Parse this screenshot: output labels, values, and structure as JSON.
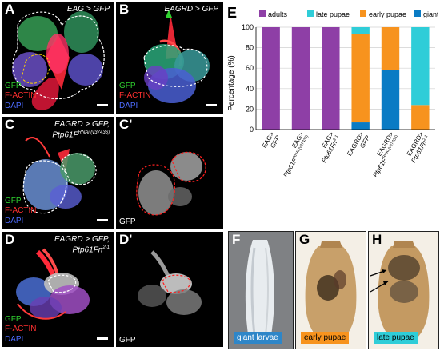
{
  "panels": {
    "A": {
      "label": "A",
      "genotype_line1": "EAG > GFP",
      "genotype_line2": ""
    },
    "B": {
      "label": "B",
      "genotype_line1": "EAGRD > GFP",
      "genotype_line2": ""
    },
    "C": {
      "label": "C",
      "genotype_line1": "EAGRD > GFP,",
      "genotype_line2": "Ptp61F",
      "genotype_sup": "RNAi (v37436)"
    },
    "C_prime": {
      "label": "C'",
      "channel": "GFP"
    },
    "D": {
      "label": "D",
      "genotype_line1": "EAGRD > GFP,",
      "genotype_line2": "Ptp61Fn",
      "genotype_sup": "2-1"
    },
    "D_prime": {
      "label": "D'",
      "channel": "GFP"
    },
    "E": {
      "label": "E"
    },
    "F": {
      "label": "F",
      "tag": "giant larvae"
    },
    "G": {
      "label": "G",
      "tag": "early pupae"
    },
    "H": {
      "label": "H",
      "tag": "late pupae"
    }
  },
  "stain_legend": {
    "gfp": "GFP",
    "factin": "F-ACTIN",
    "dapi": "DAPI"
  },
  "colors": {
    "adults": "#8e3fa6",
    "late_pupae": "#2fcdd8",
    "early_pupae": "#f7931e",
    "giant_larvae": "#0a7bc4",
    "gfp_text": "#2fd12f",
    "factin_text": "#ff3030",
    "dapi_text": "#4d6bff"
  },
  "chart_data": {
    "type": "bar",
    "stacked": true,
    "ylabel": "Percentage (%)",
    "ylim": [
      0,
      100
    ],
    "yticks": [
      0,
      20,
      40,
      60,
      80,
      100
    ],
    "grid": true,
    "legend": {
      "position": "top",
      "entries": [
        "adults",
        "late pupae",
        "early pupae",
        "giant larvae"
      ]
    },
    "categories": [
      {
        "main": "EAG>",
        "sub": "GFP",
        "sup": ""
      },
      {
        "main": "EAG>",
        "sub": "Ptp61F",
        "sup": "RNAi (v37436)"
      },
      {
        "main": "EAG>",
        "sub": "Ptp61Fn",
        "sup": "2-1"
      },
      {
        "main": "EAGRD>",
        "sub": "GFP",
        "sup": ""
      },
      {
        "main": "EAGRD>",
        "sub": "Ptp61F",
        "sup": "RNAi (v37436)"
      },
      {
        "main": "EAGRD>",
        "sub": "Ptp61Fn",
        "sup": "2-1"
      }
    ],
    "series": [
      {
        "name": "giant larvae",
        "values": [
          0,
          0,
          0,
          7,
          58,
          0
        ]
      },
      {
        "name": "early pupae",
        "values": [
          0,
          0,
          0,
          86,
          42,
          24
        ]
      },
      {
        "name": "late pupae",
        "values": [
          0,
          0,
          0,
          7,
          0,
          76
        ]
      },
      {
        "name": "adults",
        "values": [
          100,
          100,
          100,
          0,
          0,
          0
        ]
      }
    ]
  }
}
